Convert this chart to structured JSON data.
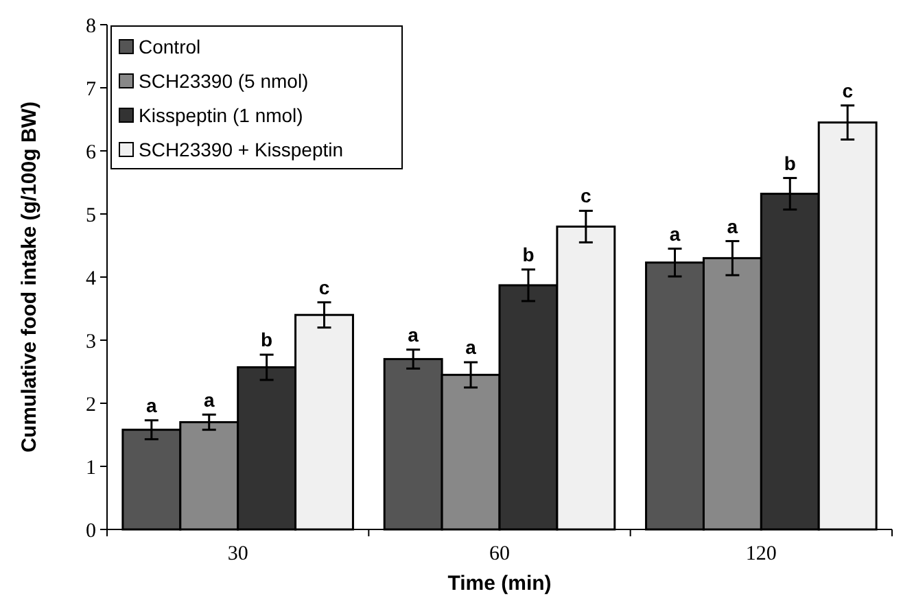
{
  "chart_data": {
    "type": "bar",
    "xlabel": "Time (min)",
    "ylabel": "Cumulative food intake (g/100g BW)",
    "categories": [
      "30",
      "60",
      "120"
    ],
    "series": [
      {
        "name": "Control",
        "color": "#555555",
        "values": [
          1.58,
          2.7,
          4.23
        ],
        "errors": [
          0.15,
          0.15,
          0.22
        ]
      },
      {
        "name": "SCH23390 (5 nmol)",
        "color": "#888888",
        "values": [
          1.7,
          2.45,
          4.3
        ],
        "errors": [
          0.12,
          0.2,
          0.27
        ]
      },
      {
        "name": "Kisspeptin (1 nmol)",
        "color": "#333333",
        "values": [
          2.57,
          3.87,
          5.32
        ],
        "errors": [
          0.2,
          0.25,
          0.25
        ]
      },
      {
        "name": "SCH23390 + Kisspeptin",
        "color": "#f0f0f0",
        "values": [
          3.4,
          4.8,
          6.45
        ],
        "errors": [
          0.2,
          0.25,
          0.27
        ]
      }
    ],
    "annotations": [
      "a",
      "a",
      "b",
      "c",
      "a",
      "a",
      "b",
      "c",
      "a",
      "a",
      "b",
      "c"
    ],
    "ylim": [
      0,
      8
    ],
    "yticks": [
      0,
      1,
      2,
      3,
      4,
      5,
      6,
      7,
      8
    ],
    "legend": "top left",
    "grid": false
  }
}
